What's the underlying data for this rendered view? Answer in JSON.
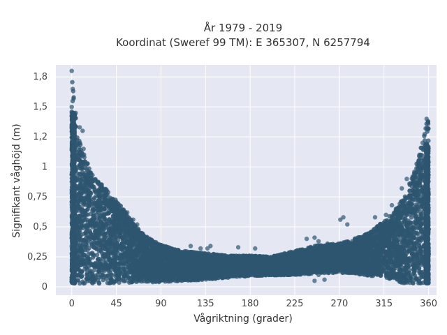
{
  "chart_data": {
    "type": "scatter",
    "title_line1": "År 1979 - 2019",
    "title_line2": "Koordinat (Sweref 99 TM): E 365307, N 6257794",
    "xlabel": "Vågriktning (grader)",
    "ylabel": "Signifikant våghöjd (m)",
    "xlim": [
      -16,
      368
    ],
    "ylim": [
      -0.07,
      1.85
    ],
    "x_ticks": [
      0,
      45,
      90,
      135,
      180,
      225,
      270,
      315,
      360
    ],
    "x_tick_labels": [
      "0",
      "45",
      "90",
      "135",
      "180",
      "225",
      "270",
      "315",
      "360"
    ],
    "y_ticks": [
      0,
      0.25,
      0.5,
      0.75,
      1,
      1.25,
      1.5,
      1.75
    ],
    "y_tick_labels": [
      "0",
      "0,25",
      "0,5",
      "0,75",
      "1",
      "1,2",
      "1,5",
      "1,8"
    ],
    "grid": true,
    "marker_color": "#2e5570",
    "plot_bgcolor": "#e5e8f2",
    "upper_envelope": [
      [
        0,
        1.8
      ],
      [
        2,
        1.6
      ],
      [
        5,
        1.35
      ],
      [
        10,
        1.15
      ],
      [
        20,
        0.95
      ],
      [
        35,
        0.82
      ],
      [
        45,
        0.72
      ],
      [
        55,
        0.62
      ],
      [
        65,
        0.5
      ],
      [
        75,
        0.42
      ],
      [
        90,
        0.35
      ],
      [
        110,
        0.3
      ],
      [
        135,
        0.28
      ],
      [
        160,
        0.26
      ],
      [
        180,
        0.26
      ],
      [
        200,
        0.25
      ],
      [
        225,
        0.3
      ],
      [
        250,
        0.35
      ],
      [
        270,
        0.36
      ],
      [
        285,
        0.4
      ],
      [
        300,
        0.45
      ],
      [
        315,
        0.55
      ],
      [
        325,
        0.62
      ],
      [
        335,
        0.75
      ],
      [
        345,
        0.95
      ],
      [
        352,
        1.15
      ],
      [
        357,
        1.35
      ],
      [
        360,
        1.4
      ]
    ],
    "lower_envelope": [
      [
        0,
        0.02
      ],
      [
        45,
        0.03
      ],
      [
        90,
        0.04
      ],
      [
        135,
        0.06
      ],
      [
        180,
        0.09
      ],
      [
        225,
        0.1
      ],
      [
        270,
        0.12
      ],
      [
        315,
        0.08
      ],
      [
        330,
        0.03
      ],
      [
        360,
        0.02
      ]
    ],
    "outliers": [
      [
        0,
        1.8
      ],
      [
        1,
        1.65
      ],
      [
        2,
        1.58
      ],
      [
        0,
        1.5
      ],
      [
        4,
        1.45
      ],
      [
        8,
        1.33
      ],
      [
        11,
        1.3
      ],
      [
        12,
        1.15
      ],
      [
        18,
        0.88
      ],
      [
        28,
        0.85
      ],
      [
        30,
        0.8
      ],
      [
        32,
        0.78
      ],
      [
        40,
        0.65
      ],
      [
        46,
        0.62
      ],
      [
        52,
        0.58
      ],
      [
        56,
        0.62
      ],
      [
        62,
        0.56
      ],
      [
        66,
        0.52
      ],
      [
        120,
        0.34
      ],
      [
        130,
        0.32
      ],
      [
        137,
        0.32
      ],
      [
        140,
        0.34
      ],
      [
        168,
        0.33
      ],
      [
        185,
        0.32
      ],
      [
        237,
        0.4
      ],
      [
        245,
        0.41
      ],
      [
        249,
        0.38
      ],
      [
        258,
        0.36
      ],
      [
        270,
        0.33
      ],
      [
        271,
        0.56
      ],
      [
        274,
        0.58
      ],
      [
        275,
        0.35
      ],
      [
        278,
        0.52
      ],
      [
        280,
        0.35
      ],
      [
        283,
        0.38
      ],
      [
        286,
        0.36
      ],
      [
        290,
        0.4
      ],
      [
        297,
        0.4
      ],
      [
        300,
        0.4
      ],
      [
        303,
        0.46
      ],
      [
        306,
        0.58
      ],
      [
        310,
        0.5
      ],
      [
        317,
        0.6
      ],
      [
        320,
        0.5
      ],
      [
        323,
        0.68
      ],
      [
        327,
        0.65
      ],
      [
        333,
        0.82
      ],
      [
        338,
        0.9
      ],
      [
        341,
        0.85
      ],
      [
        344,
        0.92
      ],
      [
        350,
        1.05
      ],
      [
        354,
        1.2
      ],
      [
        357,
        1.32
      ],
      [
        358,
        1.4
      ],
      [
        249,
        0.1
      ],
      [
        245,
        0.05
      ],
      [
        255,
        0.06
      ]
    ]
  }
}
